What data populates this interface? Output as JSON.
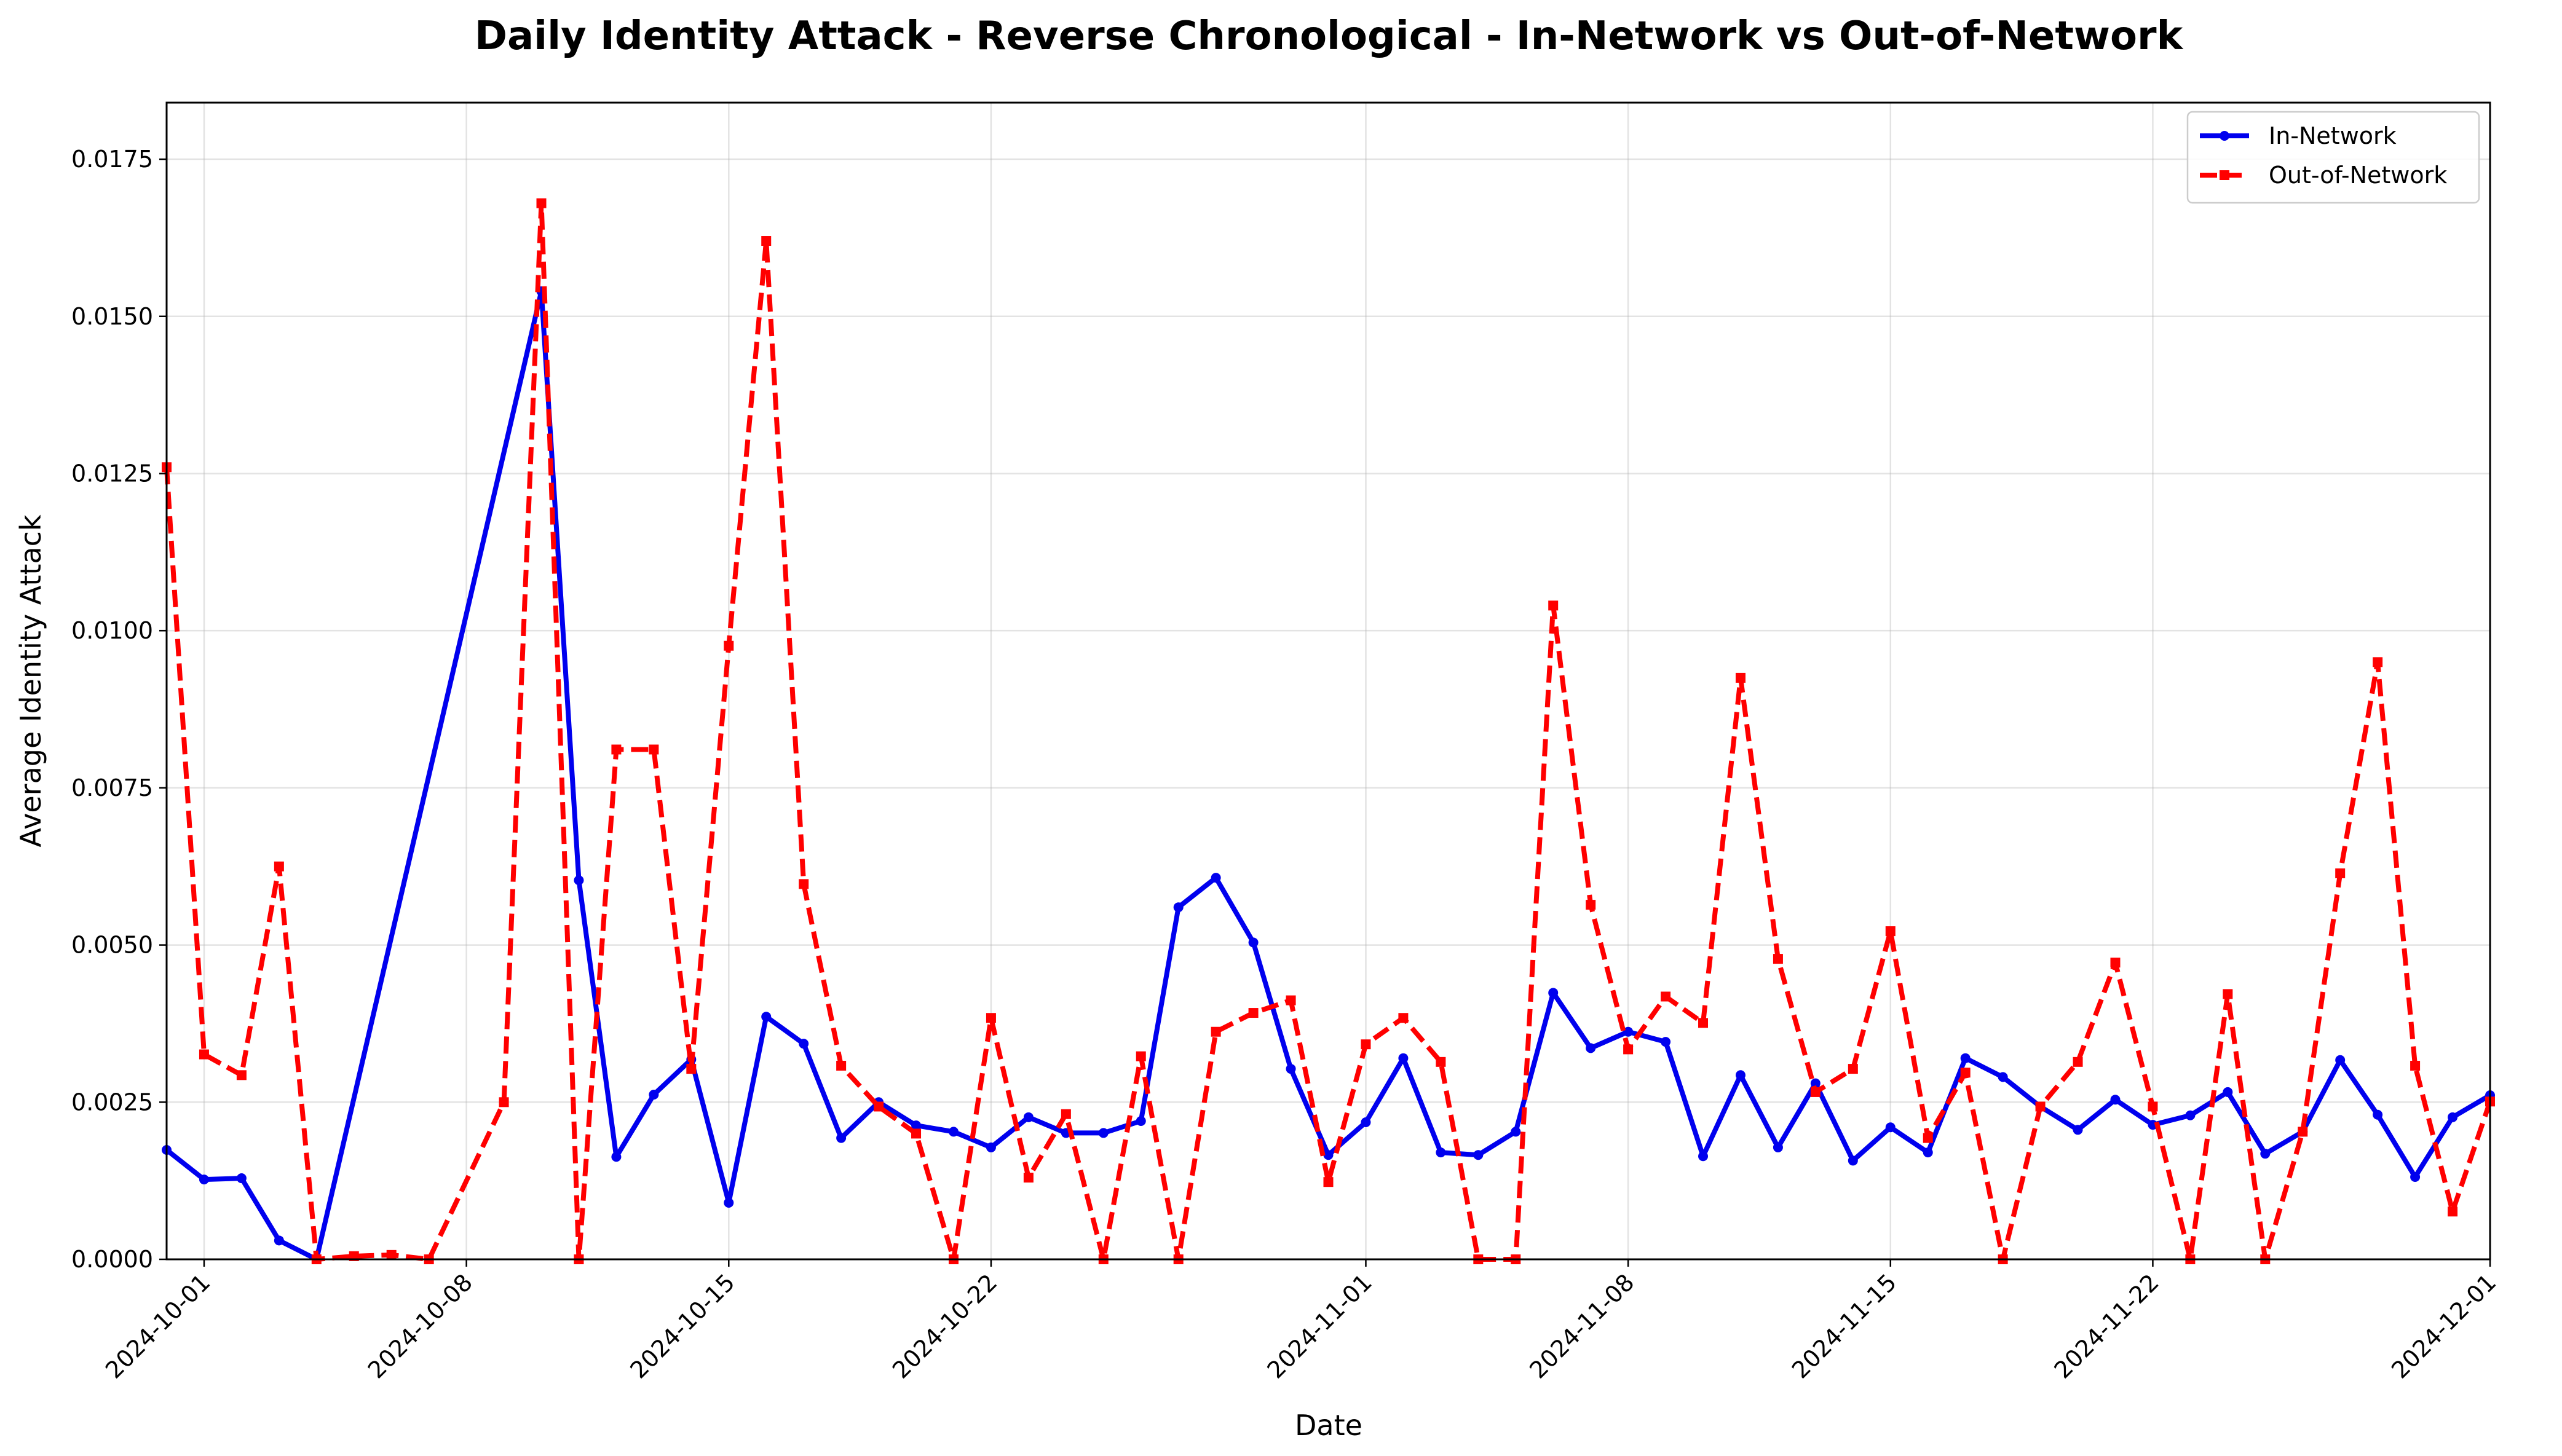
{
  "chart_data": {
    "type": "line",
    "title": "Daily Identity Attack - Reverse Chronological - In-Network vs Out-of-Network",
    "xlabel": "Date",
    "ylabel": "Average Identity Attack",
    "x_axis_type": "date",
    "xlim": [
      "2024-09-30",
      "2024-12-01"
    ],
    "ylim": [
      0,
      0.0184
    ],
    "x_ticks": [
      "2024-10-01",
      "2024-10-08",
      "2024-10-15",
      "2024-10-22",
      "2024-11-01",
      "2024-11-08",
      "2024-11-15",
      "2024-11-22",
      "2024-12-01"
    ],
    "y_ticks": [
      0.0,
      0.0025,
      0.005,
      0.0075,
      0.01,
      0.0125,
      0.015,
      0.0175
    ],
    "y_tick_labels": [
      "0.0000",
      "0.0025",
      "0.0050",
      "0.0075",
      "0.0100",
      "0.0125",
      "0.0150",
      "0.0175"
    ],
    "grid": true,
    "legend_position": "top-right",
    "series": [
      {
        "name": "In-Network",
        "color": "#0000ee",
        "line_style": "solid",
        "marker": "circle",
        "points": [
          [
            "2024-09-30",
            0.00174
          ],
          [
            "2024-10-01",
            0.00127
          ],
          [
            "2024-10-02",
            0.00129
          ],
          [
            "2024-10-03",
            0.0003
          ],
          [
            "2024-10-04",
            0.0
          ],
          [
            "2024-10-10",
            0.0154
          ],
          [
            "2024-10-11",
            0.00603
          ],
          [
            "2024-10-12",
            0.00163
          ],
          [
            "2024-10-13",
            0.00262
          ],
          [
            "2024-10-14",
            0.00318
          ],
          [
            "2024-10-15",
            0.0009
          ],
          [
            "2024-10-16",
            0.00386
          ],
          [
            "2024-10-17",
            0.00343
          ],
          [
            "2024-10-18",
            0.00193
          ],
          [
            "2024-10-19",
            0.0025
          ],
          [
            "2024-10-20",
            0.00213
          ],
          [
            "2024-10-21",
            0.00203
          ],
          [
            "2024-10-22",
            0.00178
          ],
          [
            "2024-10-23",
            0.00226
          ],
          [
            "2024-10-24",
            0.00201
          ],
          [
            "2024-10-25",
            0.00201
          ],
          [
            "2024-10-26",
            0.0022
          ],
          [
            "2024-10-27",
            0.0056
          ],
          [
            "2024-10-28",
            0.00607
          ],
          [
            "2024-10-29",
            0.00504
          ],
          [
            "2024-10-30",
            0.00303
          ],
          [
            "2024-10-31",
            0.00166
          ],
          [
            "2024-11-01",
            0.00218
          ],
          [
            "2024-11-02",
            0.0032
          ],
          [
            "2024-11-03",
            0.0017
          ],
          [
            "2024-11-04",
            0.00166
          ],
          [
            "2024-11-05",
            0.00203
          ],
          [
            "2024-11-06",
            0.00424
          ],
          [
            "2024-11-07",
            0.00336
          ],
          [
            "2024-11-08",
            0.00362
          ],
          [
            "2024-11-09",
            0.00346
          ],
          [
            "2024-11-10",
            0.00164
          ],
          [
            "2024-11-11",
            0.00293
          ],
          [
            "2024-11-12",
            0.00178
          ],
          [
            "2024-11-13",
            0.0028
          ],
          [
            "2024-11-14",
            0.00157
          ],
          [
            "2024-11-15",
            0.0021
          ],
          [
            "2024-11-16",
            0.0017
          ],
          [
            "2024-11-17",
            0.0032
          ],
          [
            "2024-11-18",
            0.0029
          ],
          [
            "2024-11-19",
            0.00243
          ],
          [
            "2024-11-20",
            0.00206
          ],
          [
            "2024-11-21",
            0.00254
          ],
          [
            "2024-11-22",
            0.00214
          ],
          [
            "2024-11-23",
            0.00229
          ],
          [
            "2024-11-24",
            0.00266
          ],
          [
            "2024-11-25",
            0.00168
          ],
          [
            "2024-11-26",
            0.00203
          ],
          [
            "2024-11-27",
            0.00317
          ],
          [
            "2024-11-28",
            0.0023
          ],
          [
            "2024-11-29",
            0.00131
          ],
          [
            "2024-11-30",
            0.00226
          ],
          [
            "2024-12-01",
            0.00261
          ]
        ]
      },
      {
        "name": "Out-of-Network",
        "color": "#ff0000",
        "line_style": "dashed",
        "marker": "square",
        "points": [
          [
            "2024-09-30",
            0.0126
          ],
          [
            "2024-10-01",
            0.00326
          ],
          [
            "2024-10-02",
            0.00293
          ],
          [
            "2024-10-03",
            0.00625
          ],
          [
            "2024-10-04",
            0.0
          ],
          [
            "2024-10-05",
            5e-05
          ],
          [
            "2024-10-06",
            7e-05
          ],
          [
            "2024-10-07",
            0.0
          ],
          [
            "2024-10-09",
            0.0025
          ],
          [
            "2024-10-10",
            0.0168
          ],
          [
            "2024-10-11",
            0.0
          ],
          [
            "2024-10-12",
            0.00811
          ],
          [
            "2024-10-13",
            0.00811
          ],
          [
            "2024-10-14",
            0.00303
          ],
          [
            "2024-10-15",
            0.00976
          ],
          [
            "2024-10-16",
            0.0162
          ],
          [
            "2024-10-17",
            0.00597
          ],
          [
            "2024-10-18",
            0.00308
          ],
          [
            "2024-10-19",
            0.00243
          ],
          [
            "2024-10-20",
            0.002
          ],
          [
            "2024-10-21",
            0.0
          ],
          [
            "2024-10-22",
            0.00384
          ],
          [
            "2024-10-23",
            0.0013
          ],
          [
            "2024-10-24",
            0.00231
          ],
          [
            "2024-10-25",
            0.0
          ],
          [
            "2024-10-26",
            0.00323
          ],
          [
            "2024-10-27",
            0.0
          ],
          [
            "2024-10-28",
            0.00362
          ],
          [
            "2024-10-29",
            0.00392
          ],
          [
            "2024-10-30",
            0.00412
          ],
          [
            "2024-10-31",
            0.00123
          ],
          [
            "2024-11-01",
            0.00342
          ],
          [
            "2024-11-02",
            0.00384
          ],
          [
            "2024-11-03",
            0.00314
          ],
          [
            "2024-11-04",
            0.0
          ],
          [
            "2024-11-05",
            0.0
          ],
          [
            "2024-11-06",
            0.0104
          ],
          [
            "2024-11-07",
            0.00564
          ],
          [
            "2024-11-08",
            0.00334
          ],
          [
            "2024-11-09",
            0.00418
          ],
          [
            "2024-11-10",
            0.00376
          ],
          [
            "2024-11-11",
            0.00925
          ],
          [
            "2024-11-12",
            0.00478
          ],
          [
            "2024-11-13",
            0.00266
          ],
          [
            "2024-11-14",
            0.00303
          ],
          [
            "2024-11-15",
            0.00522
          ],
          [
            "2024-11-16",
            0.00193
          ],
          [
            "2024-11-17",
            0.00297
          ],
          [
            "2024-11-18",
            0.0
          ],
          [
            "2024-11-19",
            0.00243
          ],
          [
            "2024-11-20",
            0.00314
          ],
          [
            "2024-11-21",
            0.00472
          ],
          [
            "2024-11-22",
            0.00243
          ],
          [
            "2024-11-23",
            0.0
          ],
          [
            "2024-11-24",
            0.00422
          ],
          [
            "2024-11-25",
            0.0
          ],
          [
            "2024-11-26",
            0.00203
          ],
          [
            "2024-11-27",
            0.00614
          ],
          [
            "2024-11-28",
            0.0095
          ],
          [
            "2024-11-29",
            0.00308
          ],
          [
            "2024-11-30",
            0.00076
          ],
          [
            "2024-12-01",
            0.00251
          ]
        ]
      }
    ]
  }
}
